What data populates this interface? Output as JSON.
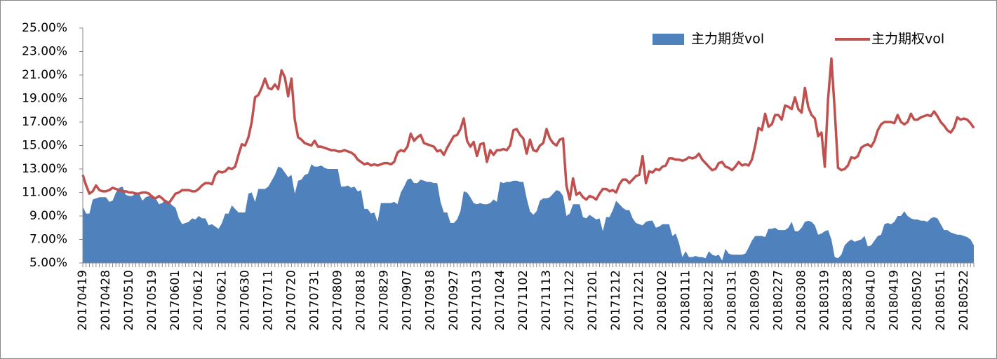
{
  "chart_data": {
    "type": "area-line",
    "categories": [
      "20170419",
      null,
      null,
      null,
      null,
      null,
      null,
      "20170428",
      null,
      null,
      null,
      null,
      null,
      null,
      "20170510",
      null,
      null,
      null,
      null,
      null,
      null,
      "20170519",
      null,
      null,
      null,
      null,
      null,
      null,
      "20170601",
      null,
      null,
      null,
      null,
      null,
      null,
      "20170612",
      null,
      null,
      null,
      null,
      null,
      null,
      "20170621",
      null,
      null,
      null,
      null,
      null,
      null,
      "20170630",
      null,
      null,
      null,
      null,
      null,
      null,
      "20170711",
      null,
      null,
      null,
      null,
      null,
      null,
      "20170720",
      null,
      null,
      null,
      null,
      null,
      null,
      "20170731",
      null,
      null,
      null,
      null,
      null,
      null,
      "20170809",
      null,
      null,
      null,
      null,
      null,
      null,
      "20170818",
      null,
      null,
      null,
      null,
      null,
      null,
      "20170829",
      null,
      null,
      null,
      null,
      null,
      null,
      "20170907",
      null,
      null,
      null,
      null,
      null,
      null,
      "20170918",
      null,
      null,
      null,
      null,
      null,
      null,
      "20170927",
      null,
      null,
      null,
      null,
      null,
      null,
      "20171013",
      null,
      null,
      null,
      null,
      null,
      null,
      "20171024",
      null,
      null,
      null,
      null,
      null,
      null,
      "20171102",
      null,
      null,
      null,
      null,
      null,
      null,
      "20171113",
      null,
      null,
      null,
      null,
      null,
      null,
      "20171122",
      null,
      null,
      null,
      null,
      null,
      null,
      "20171201",
      null,
      null,
      null,
      null,
      null,
      null,
      "20171212",
      null,
      null,
      null,
      null,
      null,
      null,
      "20171221",
      null,
      null,
      null,
      null,
      null,
      null,
      "20180102",
      null,
      null,
      null,
      null,
      null,
      null,
      "20180111",
      null,
      null,
      null,
      null,
      null,
      null,
      "20180122",
      null,
      null,
      null,
      null,
      null,
      null,
      "20180131",
      null,
      null,
      null,
      null,
      null,
      null,
      "20180209",
      null,
      null,
      null,
      null,
      null,
      null,
      "20180227",
      null,
      null,
      null,
      null,
      null,
      null,
      "20180308",
      null,
      null,
      null,
      null,
      null,
      null,
      "20180319",
      null,
      null,
      null,
      null,
      null,
      null,
      "20180328",
      null,
      null,
      null,
      null,
      null,
      null,
      "20180410",
      null,
      null,
      null,
      null,
      null,
      null,
      "20180419",
      null,
      null,
      null,
      null,
      null,
      null,
      "20180502",
      null,
      null,
      null,
      null,
      null,
      null,
      "20180511",
      null,
      null,
      null,
      null,
      null,
      null,
      "20180522",
      null,
      null,
      null
    ],
    "series": [
      {
        "name": "主力期货vol",
        "kind": "area",
        "color": "#4f81bd",
        "values": [
          9.8,
          9.2,
          9.2,
          10.4,
          10.5,
          10.6,
          10.6,
          10.6,
          10.2,
          10.3,
          11.0,
          11.4,
          11.5,
          10.8,
          10.7,
          10.7,
          11.0,
          10.9,
          10.3,
          10.6,
          10.7,
          10.8,
          10.5,
          10.0,
          10.1,
          10.4,
          10.2,
          9.9,
          9.7,
          8.8,
          8.3,
          8.4,
          8.5,
          8.8,
          8.7,
          9.0,
          8.8,
          8.8,
          8.2,
          8.3,
          8.1,
          7.9,
          8.4,
          9.2,
          9.2,
          9.9,
          9.6,
          9.3,
          9.3,
          9.3,
          10.9,
          11.0,
          10.2,
          11.3,
          11.3,
          11.3,
          11.5,
          12.0,
          12.5,
          13.2,
          13.1,
          12.7,
          12.3,
          12.5,
          10.9,
          12.0,
          12.1,
          12.5,
          12.6,
          13.4,
          13.2,
          13.2,
          13.3,
          13.1,
          13.0,
          13.0,
          13.0,
          13.0,
          11.5,
          11.5,
          11.6,
          11.4,
          11.5,
          11.1,
          11.2,
          9.6,
          9.6,
          9.2,
          9.3,
          8.5,
          10.1,
          10.1,
          10.1,
          10.1,
          10.2,
          10.0,
          11.0,
          11.5,
          12.1,
          12.2,
          11.8,
          11.8,
          12.1,
          12.0,
          11.9,
          11.9,
          11.8,
          11.8,
          10.2,
          9.3,
          9.3,
          8.4,
          8.4,
          8.7,
          9.4,
          11.1,
          11.0,
          10.6,
          10.1,
          10.0,
          10.1,
          10.0,
          10.0,
          10.1,
          10.4,
          10.2,
          11.9,
          11.8,
          11.9,
          11.9,
          12.0,
          12.0,
          11.9,
          11.9,
          10.5,
          9.4,
          9.1,
          9.4,
          10.3,
          10.5,
          10.5,
          10.6,
          10.9,
          11.2,
          11.1,
          10.7,
          9.0,
          9.2,
          10.0,
          10.0,
          10.0,
          8.9,
          8.8,
          9.1,
          8.9,
          8.7,
          8.8,
          7.7,
          8.9,
          8.9,
          9.5,
          10.3,
          10.0,
          9.7,
          9.5,
          9.5,
          8.8,
          8.4,
          8.3,
          8.2,
          8.5,
          8.6,
          8.6,
          8.0,
          8.1,
          8.3,
          8.3,
          8.3,
          7.3,
          7.5,
          6.7,
          5.5,
          6.0,
          5.5,
          5.5,
          5.6,
          5.5,
          5.5,
          5.4,
          6.0,
          5.7,
          5.6,
          5.7,
          5.2,
          6.2,
          5.8,
          5.7,
          5.7,
          5.7,
          5.7,
          5.8,
          6.3,
          6.9,
          7.3,
          7.3,
          7.3,
          7.2,
          7.9,
          7.9,
          8.0,
          7.8,
          7.8,
          7.8,
          8.0,
          8.5,
          7.7,
          7.7,
          8.0,
          8.5,
          8.6,
          8.5,
          8.2,
          7.4,
          7.5,
          7.7,
          7.8,
          7.0,
          5.5,
          5.4,
          5.7,
          6.5,
          6.8,
          7.0,
          6.8,
          6.9,
          7.0,
          7.3,
          6.4,
          6.5,
          6.9,
          7.3,
          7.4,
          8.3,
          8.4,
          8.3,
          8.5,
          9.0,
          9.0,
          9.4,
          9.0,
          8.8,
          8.7,
          8.7,
          8.6,
          8.6,
          8.5,
          8.8,
          8.9,
          8.8,
          8.3,
          7.8,
          7.8,
          7.6,
          7.5,
          7.4,
          7.4,
          7.3,
          7.2,
          7.0,
          6.5
        ]
      },
      {
        "name": "主力期权vol",
        "kind": "line",
        "color": "#c0504d",
        "values": [
          12.5,
          11.6,
          10.9,
          11.1,
          11.6,
          11.2,
          11.1,
          11.1,
          11.2,
          11.4,
          11.3,
          11.2,
          11.1,
          11.1,
          11.0,
          11.0,
          10.9,
          10.9,
          11.0,
          11.0,
          10.9,
          10.6,
          10.5,
          10.7,
          10.5,
          10.2,
          10.1,
          10.5,
          10.9,
          11.0,
          11.2,
          11.2,
          11.2,
          11.1,
          11.1,
          11.3,
          11.6,
          11.8,
          11.8,
          11.7,
          12.5,
          12.8,
          12.7,
          12.8,
          13.1,
          13.0,
          13.2,
          14.2,
          15.1,
          15.0,
          15.7,
          17.0,
          19.1,
          19.3,
          19.9,
          20.7,
          19.9,
          19.8,
          20.2,
          19.8,
          21.4,
          20.8,
          19.2,
          20.7,
          17.2,
          15.7,
          15.5,
          15.2,
          15.1,
          15.0,
          15.4,
          14.9,
          14.9,
          14.8,
          14.7,
          14.6,
          14.6,
          14.5,
          14.5,
          14.6,
          14.5,
          14.4,
          14.2,
          13.8,
          13.6,
          13.4,
          13.5,
          13.3,
          13.4,
          13.3,
          13.4,
          13.5,
          13.5,
          13.4,
          13.6,
          14.4,
          14.6,
          14.5,
          14.9,
          16.0,
          15.4,
          15.7,
          15.9,
          15.2,
          15.1,
          15.0,
          14.9,
          14.5,
          14.6,
          14.2,
          14.8,
          15.3,
          15.8,
          15.9,
          16.4,
          17.3,
          15.4,
          14.9,
          15.3,
          14.1,
          15.1,
          15.2,
          13.6,
          14.6,
          14.2,
          14.6,
          14.6,
          14.7,
          14.6,
          15.0,
          16.3,
          16.4,
          15.9,
          15.6,
          14.3,
          15.5,
          14.6,
          14.5,
          15.0,
          15.2,
          16.4,
          15.6,
          15.2,
          15.0,
          15.5,
          15.6,
          11.6,
          10.4,
          12.2,
          10.8,
          11.0,
          10.6,
          10.4,
          10.7,
          10.6,
          10.4,
          10.9,
          11.3,
          11.3,
          11.1,
          11.2,
          11.0,
          11.7,
          12.1,
          12.1,
          11.8,
          12.1,
          12.4,
          12.5,
          14.1,
          11.8,
          12.8,
          12.7,
          13.0,
          12.9,
          13.2,
          13.3,
          13.9,
          13.9,
          13.8,
          13.8,
          13.7,
          13.8,
          14.0,
          13.9,
          14.0,
          14.3,
          13.8,
          13.5,
          13.2,
          12.9,
          13.0,
          13.5,
          13.6,
          13.2,
          13.1,
          12.9,
          13.2,
          13.6,
          13.3,
          13.4,
          13.3,
          13.8,
          15.0,
          16.5,
          16.3,
          17.7,
          16.6,
          16.8,
          17.6,
          17.6,
          17.2,
          18.4,
          18.3,
          18.1,
          19.1,
          18.1,
          17.8,
          19.9,
          18.3,
          17.6,
          17.3,
          15.8,
          16.1,
          13.2,
          19.0,
          22.4,
          18.0,
          13.1,
          12.9,
          13.0,
          13.3,
          14.0,
          13.9,
          14.1,
          14.8,
          15.0,
          15.1,
          14.9,
          15.4,
          16.3,
          16.8,
          17.0,
          17.0,
          17.0,
          16.9,
          17.6,
          17.0,
          16.8,
          17.0,
          17.7,
          17.2,
          17.2,
          17.4,
          17.5,
          17.6,
          17.5,
          17.9,
          17.5,
          17.0,
          16.7,
          16.3,
          16.1,
          16.5,
          17.4,
          17.2,
          17.3,
          17.2,
          16.9,
          16.5
        ]
      }
    ],
    "ylim": [
      5,
      25
    ],
    "yticks": [
      {
        "value": 5,
        "label": "5.00%"
      },
      {
        "value": 7,
        "label": "7.00%"
      },
      {
        "value": 9,
        "label": "9.00%"
      },
      {
        "value": 11,
        "label": "11.00%"
      },
      {
        "value": 13,
        "label": "13.00%"
      },
      {
        "value": 15,
        "label": "15.00%"
      },
      {
        "value": 17,
        "label": "17.00%"
      },
      {
        "value": 19,
        "label": "19.00%"
      },
      {
        "value": 21,
        "label": "21.00%"
      },
      {
        "value": 23,
        "label": "23.00%"
      },
      {
        "value": 25,
        "label": "25.00%"
      }
    ],
    "grid": false,
    "legend": "top-right"
  }
}
